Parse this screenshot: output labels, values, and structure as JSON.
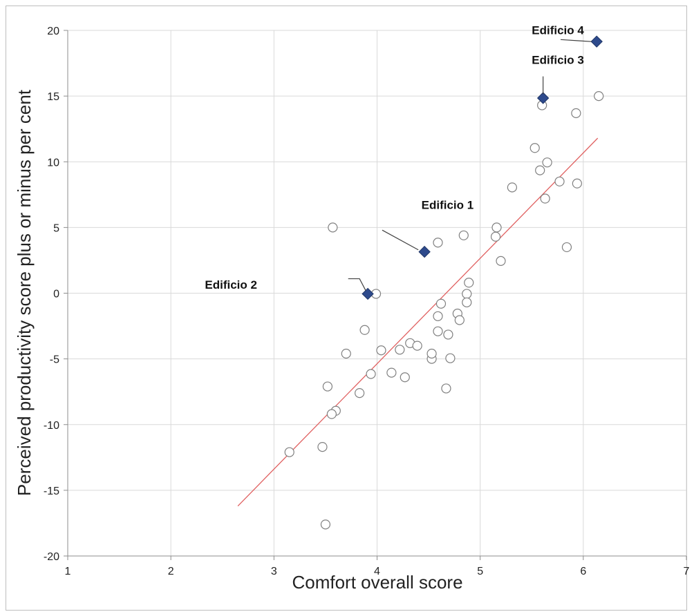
{
  "chart_data": {
    "type": "scatter",
    "title": "",
    "xlabel": "Comfort overall score",
    "ylabel": "Perceived productivity score plus or minus per cent",
    "xlim": [
      1,
      7
    ],
    "ylim": [
      -20,
      20
    ],
    "xticks": [
      1,
      2,
      3,
      4,
      5,
      6,
      7
    ],
    "yticks": [
      20,
      15,
      10,
      5,
      0,
      -5,
      -10,
      -15,
      -20
    ],
    "grid": true,
    "legend": "none",
    "series": [
      {
        "marker": "open-circle",
        "color": "#7f7f7f",
        "points": [
          [
            3.57,
            5.0
          ],
          [
            3.99,
            -0.05
          ],
          [
            3.88,
            -2.8
          ],
          [
            3.7,
            -4.6
          ],
          [
            3.52,
            -7.1
          ],
          [
            3.6,
            -8.95
          ],
          [
            3.56,
            -9.2
          ],
          [
            3.47,
            -11.7
          ],
          [
            3.15,
            -12.1
          ],
          [
            3.5,
            -17.6
          ],
          [
            3.83,
            -7.6
          ],
          [
            3.94,
            -6.15
          ],
          [
            4.04,
            -4.35
          ],
          [
            4.14,
            -6.05
          ],
          [
            4.22,
            -4.3
          ],
          [
            4.27,
            -6.4
          ],
          [
            4.32,
            -3.8
          ],
          [
            4.39,
            -4.0
          ],
          [
            4.53,
            -5.0
          ],
          [
            4.53,
            -4.6
          ],
          [
            4.59,
            3.85
          ],
          [
            4.59,
            -1.75
          ],
          [
            4.59,
            -2.9
          ],
          [
            4.62,
            -0.8
          ],
          [
            4.67,
            -7.25
          ],
          [
            4.69,
            -3.15
          ],
          [
            4.71,
            -4.95
          ],
          [
            4.78,
            -1.55
          ],
          [
            4.8,
            -2.05
          ],
          [
            4.84,
            4.4
          ],
          [
            4.87,
            -0.05
          ],
          [
            4.87,
            -0.7
          ],
          [
            4.89,
            0.8
          ],
          [
            5.15,
            4.3
          ],
          [
            5.16,
            5.0
          ],
          [
            5.2,
            2.45
          ],
          [
            5.31,
            8.05
          ],
          [
            5.53,
            11.05
          ],
          [
            5.58,
            9.35
          ],
          [
            5.6,
            14.3
          ],
          [
            5.63,
            7.2
          ],
          [
            5.65,
            9.95
          ],
          [
            5.77,
            8.5
          ],
          [
            5.84,
            3.5
          ],
          [
            5.93,
            13.7
          ],
          [
            5.94,
            8.35
          ],
          [
            6.15,
            15.0
          ]
        ]
      },
      {
        "marker": "filled-diamond",
        "color": "#2e4a8c",
        "points": [
          [
            3.91,
            -0.05
          ],
          [
            4.46,
            3.15
          ],
          [
            5.61,
            14.85
          ],
          [
            6.13,
            19.15
          ]
        ]
      }
    ],
    "trendline": {
      "color": "#e06060",
      "from": [
        2.65,
        -16.2
      ],
      "to": [
        6.14,
        11.8
      ]
    },
    "annotations": [
      {
        "text": "Edificio 1",
        "label_at": [
          4.43,
          6.4
        ],
        "leader": [
          [
            4.05,
            4.8
          ],
          [
            4.4,
            3.3
          ]
        ]
      },
      {
        "text": "Edificio 2",
        "label_at": [
          2.33,
          0.35
        ],
        "leader": [
          [
            3.72,
            1.1
          ],
          [
            3.83,
            1.1
          ],
          [
            3.89,
            0.2
          ]
        ]
      },
      {
        "text": "Edificio 3",
        "label_at": [
          5.5,
          17.45
        ],
        "leader": [
          [
            5.61,
            16.5
          ],
          [
            5.61,
            15.15
          ]
        ]
      },
      {
        "text": "Edificio 4",
        "label_at": [
          5.5,
          19.7
        ],
        "leader": [
          [
            5.78,
            19.3
          ],
          [
            5.98,
            19.2
          ],
          [
            6.08,
            19.15
          ]
        ]
      }
    ]
  }
}
